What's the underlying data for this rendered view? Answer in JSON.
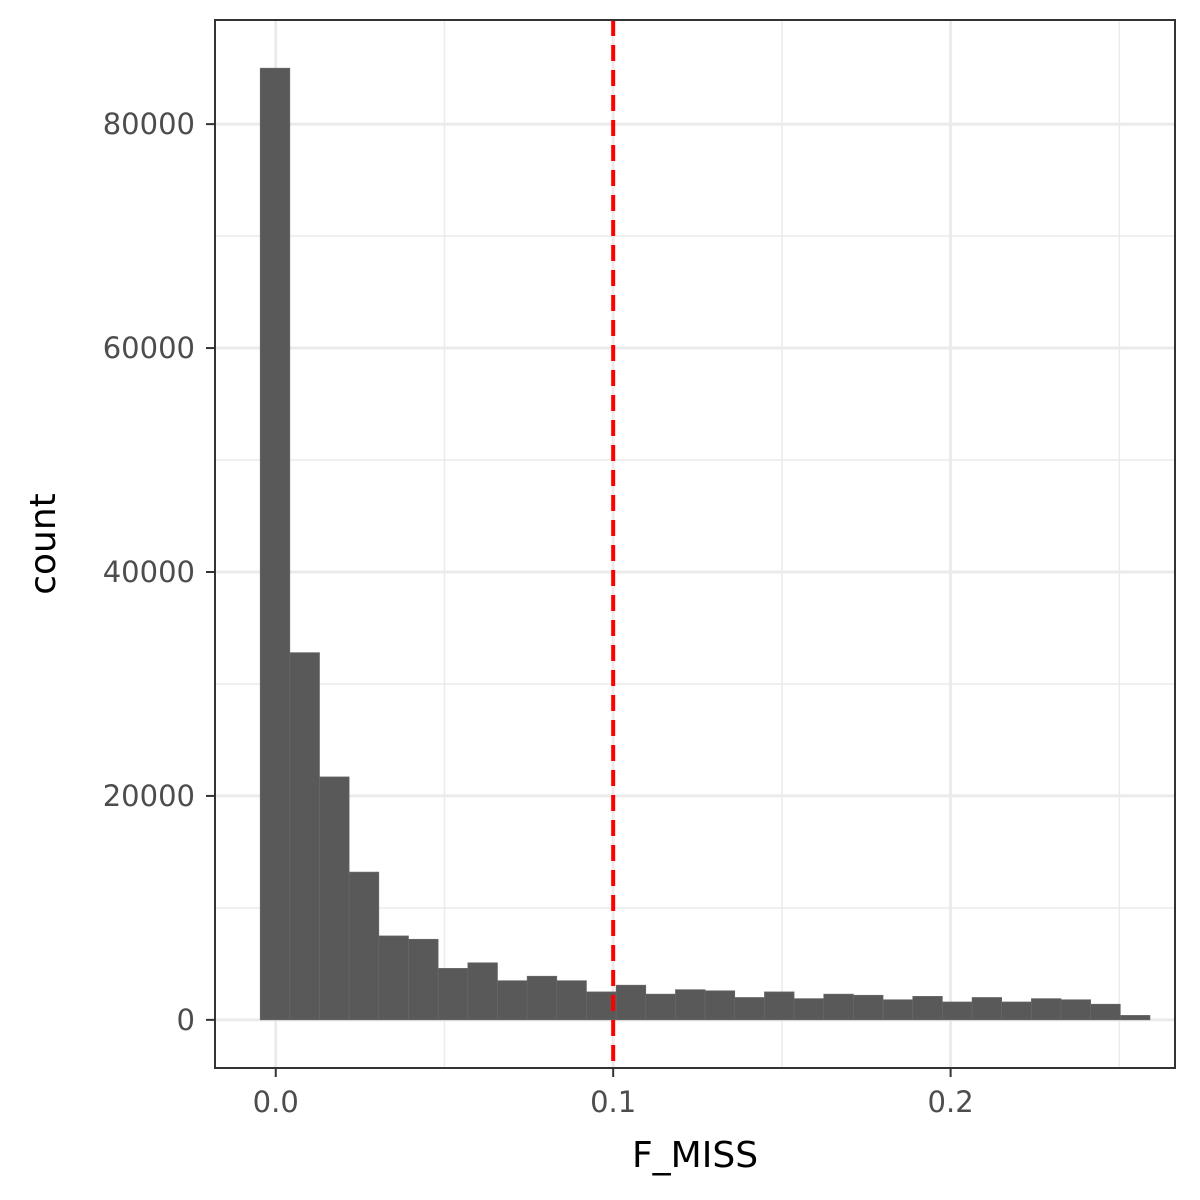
{
  "chart_data": {
    "type": "bar",
    "subtype": "histogram",
    "title": "",
    "xlabel": "F_MISS",
    "ylabel": "count",
    "xlim": [
      -0.018,
      0.2665
    ],
    "ylim": [
      -4300,
      89300
    ],
    "bin_width": 0.00879,
    "x_first_center": -0.000211,
    "values": [
      85000,
      32800,
      21700,
      13200,
      7500,
      7200,
      4600,
      5100,
      3500,
      3900,
      3500,
      2500,
      3100,
      2300,
      2700,
      2600,
      2000,
      2500,
      1900,
      2300,
      2200,
      1800,
      2100,
      1600,
      2000,
      1600,
      1900,
      1800,
      1400,
      400
    ],
    "x_ticks": [
      {
        "value": 0.0,
        "label": "0.0"
      },
      {
        "value": 0.1,
        "label": "0.1"
      },
      {
        "value": 0.2,
        "label": "0.2"
      }
    ],
    "x_minor_ticks": [
      0.05,
      0.15,
      0.25
    ],
    "y_ticks": [
      {
        "value": 0,
        "label": "0"
      },
      {
        "value": 20000,
        "label": "20000"
      },
      {
        "value": 40000,
        "label": "40000"
      },
      {
        "value": 60000,
        "label": "60000"
      },
      {
        "value": 80000,
        "label": "80000"
      }
    ],
    "y_minor_ticks": [
      10000,
      30000,
      50000,
      70000
    ],
    "vline": {
      "x": 0.1,
      "color": "#ff0000",
      "style": "dashed"
    },
    "bar_color": "#595959",
    "grid": true
  }
}
